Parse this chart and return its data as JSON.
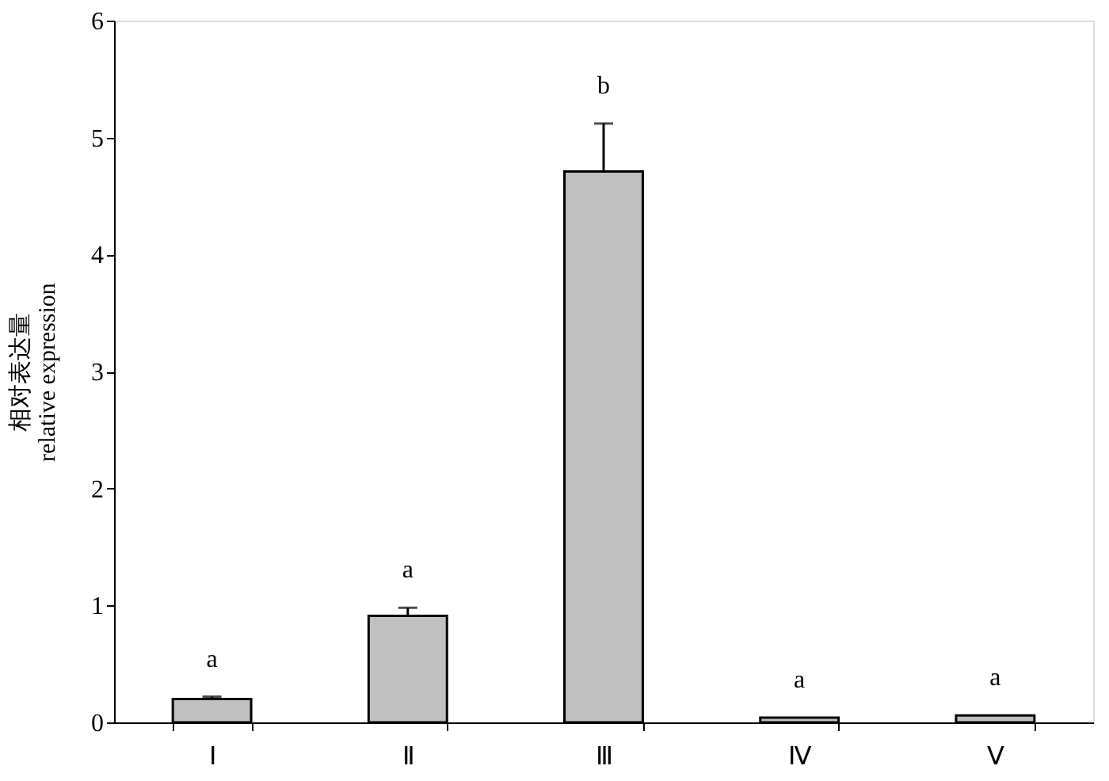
{
  "chart_data": {
    "type": "bar",
    "ylabel": "相对表达量\nrelative expression",
    "categories": [
      "Ⅰ",
      "Ⅱ",
      "Ⅲ",
      "Ⅳ",
      "Ⅴ"
    ],
    "values": [
      0.2,
      0.91,
      4.71,
      0.04,
      0.06
    ],
    "errors": [
      [
        0.2,
        0.22
      ],
      [
        0.91,
        0.98
      ],
      [
        4.71,
        5.12
      ],
      null,
      null
    ],
    "color": "#c0c0c0",
    "ylim": [
      0,
      6
    ],
    "yticks": [
      0,
      1,
      2,
      3,
      4,
      5,
      6
    ],
    "grid": false,
    "annotations": [
      {
        "text": "a",
        "x": "Ⅰ",
        "y": 0.22
      },
      {
        "text": "a",
        "x": "Ⅱ",
        "y": 0.98
      },
      {
        "text": "b",
        "x": "Ⅲ",
        "y": 5.12
      },
      {
        "text": "a",
        "x": "Ⅳ",
        "y": 0.04
      },
      {
        "text": "a",
        "x": "Ⅴ",
        "y": 0.06
      }
    ]
  }
}
